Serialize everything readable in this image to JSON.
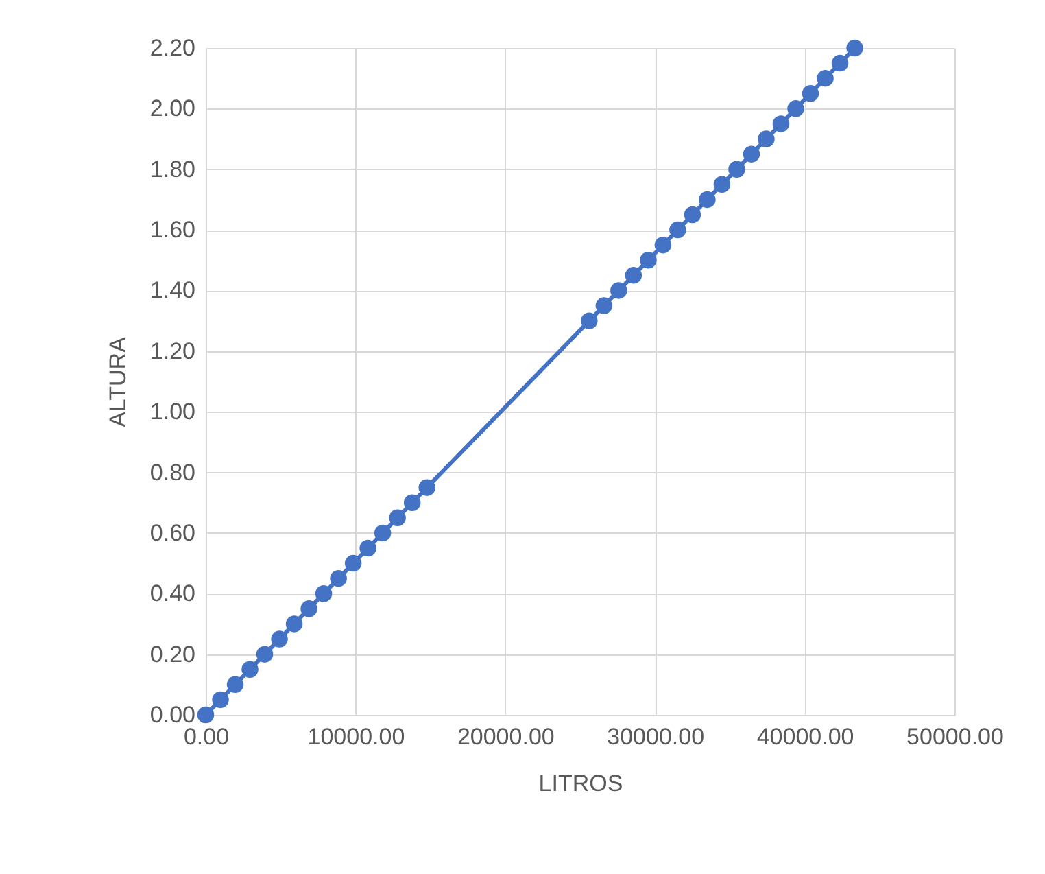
{
  "chart_data": {
    "type": "line",
    "xlabel": "LITROS",
    "ylabel": "ALTURA",
    "x": [
      0,
      985,
      1970,
      2955,
      3940,
      4925,
      5910,
      6895,
      7880,
      8865,
      9850,
      10835,
      11820,
      12805,
      13790,
      14775,
      25610,
      26595,
      27580,
      28565,
      29550,
      30535,
      31520,
      32505,
      33490,
      34475,
      35460,
      36445,
      37430,
      38415,
      39400,
      40385,
      41370,
      42355,
      43340
    ],
    "series": [
      {
        "color": "#4472c4",
        "values": [
          0,
          0.05,
          0.1,
          0.15,
          0.2,
          0.25,
          0.3,
          0.35,
          0.4,
          0.45,
          0.5,
          0.55,
          0.6,
          0.65,
          0.7,
          0.75,
          1.3,
          1.35,
          1.4,
          1.45,
          1.5,
          1.55,
          1.6,
          1.65,
          1.7,
          1.75,
          1.8,
          1.85,
          1.9,
          1.95,
          2.0,
          2.05,
          2.1,
          2.15,
          2.2
        ]
      }
    ],
    "xlim": [
      0,
      50000
    ],
    "xticks": [
      {
        "value": 0,
        "label": "0.00"
      },
      {
        "value": 10000,
        "label": "10000.00"
      },
      {
        "value": 20000,
        "label": "20000.00"
      },
      {
        "value": 30000,
        "label": "30000.00"
      },
      {
        "value": 40000,
        "label": "40000.00"
      },
      {
        "value": 50000,
        "label": "50000.00"
      }
    ],
    "ylim": [
      0,
      2.2
    ],
    "yticks": [
      {
        "value": 0,
        "label": "0.00"
      },
      {
        "value": 0.2,
        "label": "0.20"
      },
      {
        "value": 0.4,
        "label": "0.40"
      },
      {
        "value": 0.6,
        "label": "0.60"
      },
      {
        "value": 0.8,
        "label": "0.80"
      },
      {
        "value": 1.0,
        "label": "1.00"
      },
      {
        "value": 1.2,
        "label": "1.20"
      },
      {
        "value": 1.4,
        "label": "1.40"
      },
      {
        "value": 1.6,
        "label": "1.60"
      },
      {
        "value": 1.8,
        "label": "1.80"
      },
      {
        "value": 2.0,
        "label": "2.00"
      },
      {
        "value": 2.2,
        "label": "2.20"
      }
    ],
    "grid": true,
    "marker": "circle",
    "line_style": "solid"
  }
}
